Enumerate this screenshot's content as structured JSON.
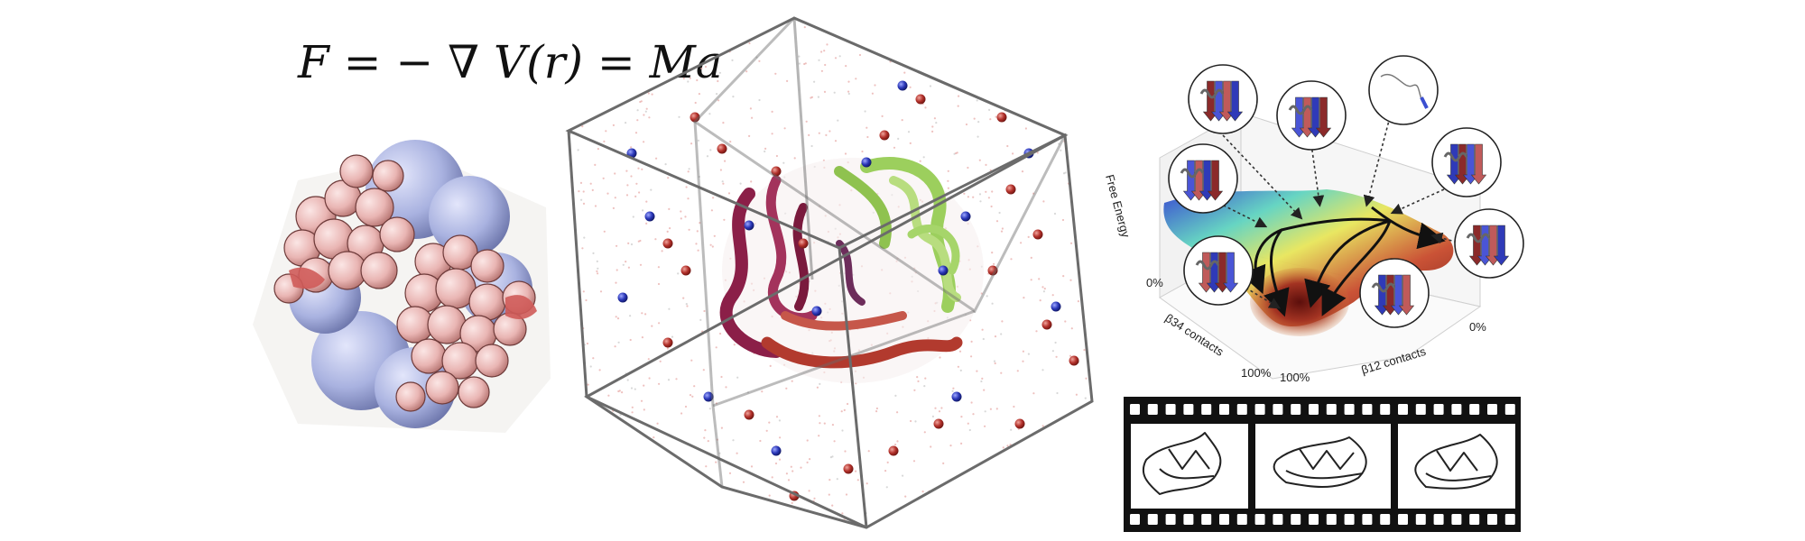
{
  "equation": "F = − ∇ V(r) = Ma",
  "energy_landscape": {
    "z_axis_label": "Free Energy",
    "left_axis_start": "0%",
    "left_axis_end": "100%",
    "left_axis_label": "β34 contacts",
    "right_axis_start": "100%",
    "right_axis_end": "0%",
    "right_axis_label": "β12 contacts"
  },
  "colors": {
    "protein_pink": "#e9b5b3",
    "protein_blue": "#a9b2e0",
    "ion_red": "#b2302a",
    "ion_blue": "#2a37b8",
    "helix_green": "#9ccf5d",
    "helix_magenta": "#8b1f48",
    "box_edge": "#6b6b6b",
    "film": "#111111"
  }
}
